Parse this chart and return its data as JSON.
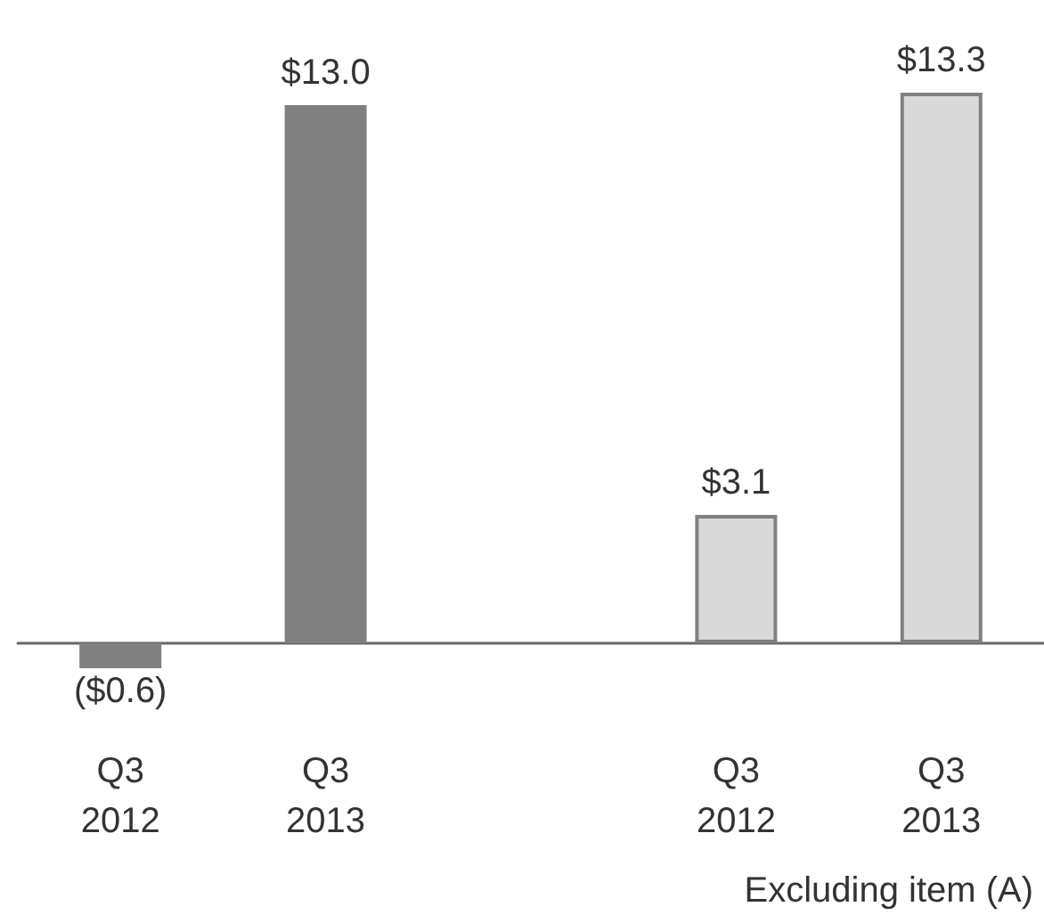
{
  "chart_data": {
    "type": "bar",
    "categories": [
      "Q3\n2012",
      "Q3\n2013",
      null,
      "Q3\n2012",
      "Q3\n2013"
    ],
    "values": [
      -0.6,
      13.0,
      null,
      3.1,
      13.3
    ],
    "colors": [
      "#808080",
      "#808080",
      null,
      "#d9d9d9",
      "#d9d9d9"
    ],
    "value_labels": [
      "($0.6)",
      "$13.0",
      null,
      "$3.1",
      "$13.3"
    ],
    "annotations": [
      "Excluding item (A)"
    ],
    "grid": false
  }
}
